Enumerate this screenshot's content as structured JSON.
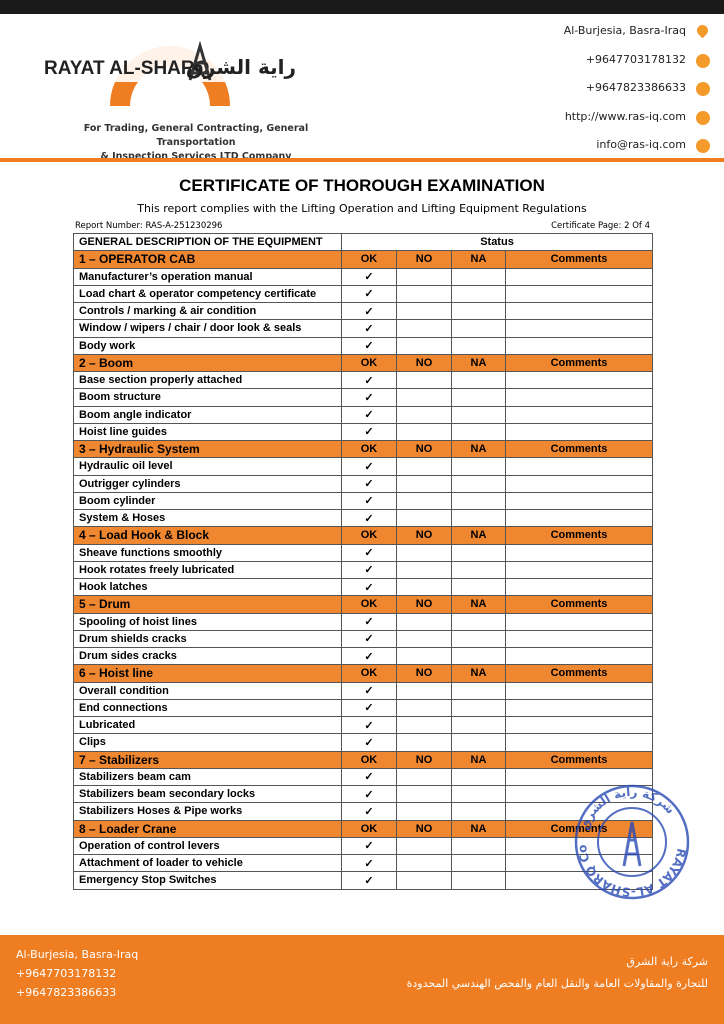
{
  "header": {
    "company_name": "RAYAT AL-SHARQ",
    "company_name_arabic": "راية الشرق",
    "tagline": [
      "For Trading, General Contracting, General Transportation",
      "& Inspection Services LTD Company"
    ],
    "contacts": [
      "Al-Burjesia, Basra-Iraq",
      "+9647703178132",
      "+9647823386633",
      "http://www.ras-iq.com",
      "info@ras-iq.com"
    ]
  },
  "document": {
    "title": "CERTIFICATE OF THOROUGH EXAMINATION",
    "subtitle": "This report complies with the Lifting Operation and Lifting Equipment Regulations",
    "report_number": "Report Number: RAS-A-251230296",
    "certificate_page": "Certificate Page: 2 Of 4"
  },
  "table": {
    "header": [
      "GENERAL DESCRIPTION OF THE EQUIPMENT",
      "Status"
    ],
    "columns": [
      "OK",
      "NO",
      "NA",
      "Comments"
    ],
    "sections": [
      {
        "title": "1 – OPERATOR CAB",
        "items": [
          {
            "name": "Manufacturer’s operation manual",
            "ok": "✓"
          },
          {
            "name": "Load chart & operator competency certificate",
            "ok": "✓"
          },
          {
            "name": "Controls / marking & air condition",
            "ok": "✓"
          },
          {
            "name": "Window / wipers / chair / door look & seals",
            "ok": "✓"
          },
          {
            "name": "Body work",
            "ok": "✓"
          }
        ]
      },
      {
        "title": "2 – Boom",
        "items": [
          {
            "name": "Base section properly attached",
            "ok": "✓"
          },
          {
            "name": "Boom structure",
            "ok": "✓"
          },
          {
            "name": "Boom angle indicator",
            "ok": "✓"
          },
          {
            "name": "Hoist line guides",
            "ok": "✓"
          }
        ]
      },
      {
        "title": "3 – Hydraulic System",
        "items": [
          {
            "name": "Hydraulic oil level",
            "ok": "✓"
          },
          {
            "name": "Outrigger cylinders",
            "ok": "✓"
          },
          {
            "name": "Boom cylinder",
            "ok": "✓"
          },
          {
            "name": "System & Hoses",
            "ok": "✓"
          }
        ]
      },
      {
        "title": "4 – Load Hook & Block",
        "items": [
          {
            "name": "Sheave functions smoothly",
            "ok": "✓"
          },
          {
            "name": "Hook rotates freely lubricated",
            "ok": "✓"
          },
          {
            "name": "Hook latches",
            "ok": "✓"
          }
        ]
      },
      {
        "title": "5 – Drum",
        "items": [
          {
            "name": "Spooling of hoist lines",
            "ok": "✓"
          },
          {
            "name": "Drum shields cracks",
            "ok": "✓"
          },
          {
            "name": "Drum sides cracks",
            "ok": "✓"
          }
        ]
      },
      {
        "title": "6 – Hoist line",
        "items": [
          {
            "name": "Overall condition",
            "ok": "✓"
          },
          {
            "name": "End connections",
            "ok": "✓"
          },
          {
            "name": "Lubricated",
            "ok": "✓"
          },
          {
            "name": "Clips",
            "ok": "✓"
          }
        ]
      },
      {
        "title": "7 – Stabilizers",
        "items": [
          {
            "name": "Stabilizers beam cam",
            "ok": "✓"
          },
          {
            "name": "Stabilizers beam secondary locks",
            "ok": "✓"
          },
          {
            "name": "Stabilizers Hoses & Pipe works",
            "ok": "✓"
          }
        ]
      },
      {
        "title": "8 – Loader Crane",
        "items": [
          {
            "name": "Operation of control levers",
            "ok": "✓"
          },
          {
            "name": "Attachment of loader to vehicle",
            "ok": "✓"
          },
          {
            "name": "Emergency Stop Switches",
            "ok": "✓"
          }
        ]
      }
    ]
  },
  "stamp": {
    "english": "RAYAT AL-SHARQ Co.",
    "arabic": "شركة راية الشرق"
  },
  "footer": {
    "contacts": [
      "Al-Burjesia, Basra-Iraq",
      "+9647703178132",
      "+9647823386633"
    ],
    "arabic": [
      "شركة راية الشرق",
      "للتجارة والمقاولات العامة والنقل العام والفحص الهندسي المحدودة"
    ]
  }
}
